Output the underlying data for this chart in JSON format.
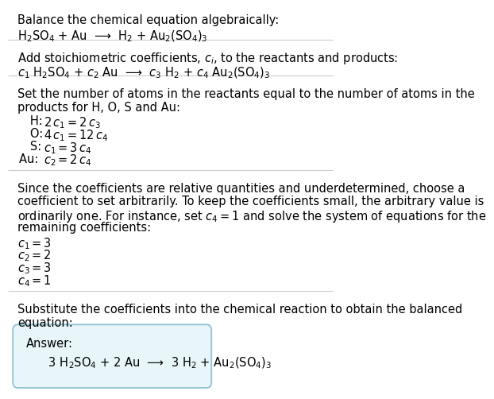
{
  "title_text": "Balance the chemical equation algebraically:",
  "eq1_line1": "H$_2$SO$_4$ + Au  ⟶  H$_2$ + Au$_2$(SO$_4$)$_3$",
  "section2_title": "Add stoichiometric coefficients, $c_i$, to the reactants and products:",
  "eq2_line1": "$c_1$ H$_2$SO$_4$ + $c_2$ Au  ⟶  $c_3$ H$_2$ + $c_4$ Au$_2$(SO$_4$)$_3$",
  "section3_line1": "Set the number of atoms in the reactants equal to the number of atoms in the",
  "section3_line2": "products for H, O, S and Au:",
  "atom_lines": [
    [
      "   H: ",
      "$2\\,c_1 = 2\\,c_3$"
    ],
    [
      "   O: ",
      "$4\\,c_1 = 12\\,c_4$"
    ],
    [
      "   S: ",
      "$c_1 = 3\\,c_4$"
    ],
    [
      "Au: ",
      "$c_2 = 2\\,c_4$"
    ]
  ],
  "section4_line1": "Since the coefficients are relative quantities and underdetermined, choose a",
  "section4_line2": "coefficient to set arbitrarily. To keep the coefficients small, the arbitrary value is",
  "section4_line3": "ordinarily one. For instance, set $c_4 = 1$ and solve the system of equations for the",
  "section4_line4": "remaining coefficients:",
  "coeff_lines": [
    "$c_1 = 3$",
    "$c_2 = 2$",
    "$c_3 = 3$",
    "$c_4 = 1$"
  ],
  "section5_line1": "Substitute the coefficients into the chemical reaction to obtain the balanced",
  "section5_line2": "equation:",
  "answer_label": "Answer:",
  "answer_eq": "      3 H$_2$SO$_4$ + 2 Au  ⟶  3 H$_2$ + Au$_2$(SO$_4$)$_3$",
  "bg_color": "#ffffff",
  "text_color": "#000000",
  "answer_box_facecolor": "#e8f5f9",
  "answer_box_edgecolor": "#90c4d4",
  "separator_color": "#cccccc",
  "main_fontsize": 10.5
}
